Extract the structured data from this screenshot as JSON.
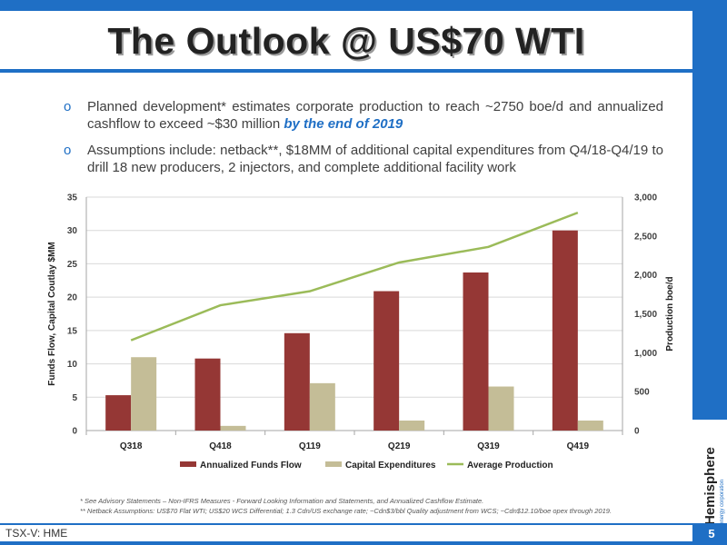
{
  "slide": {
    "title": "The Outlook @ US$70 WTI",
    "bullets": [
      {
        "text": "Planned development* estimates corporate production to reach ~2750 boe/d and annualized cashflow to exceed ~$30 million ",
        "emphasis": "by the end of 2019"
      },
      {
        "text": "Assumptions include: netback**, $18MM of additional capital expenditures from Q4/18-Q4/19 to drill 18 new producers, 2 injectors, and complete additional facility work",
        "emphasis": ""
      }
    ],
    "bullet_symbol": "o",
    "footnotes": [
      "*   See Advisory Statements – Non-IFRS Measures - Forward Looking Information and Statements, and Annualized Cashflow Estimate.",
      "**  Netback Assumptions: US$70 Flat WTI; US$20 WCS Differential; 1.3 Cdn/US exchange rate; ~Cdn$3/bbl Quality adjustment from WCS; ~Cdn$12.10/boe opex through 2019."
    ],
    "ticker": "TSX-V: HME",
    "page_number": "5",
    "logo": {
      "name": "Hemisphere",
      "sub": "energy corporation"
    }
  },
  "colors": {
    "brand_blue": "#1f6fc5",
    "funds_flow": "#953735",
    "capex": "#c4bd97",
    "production": "#9bbb59"
  },
  "chart_data": {
    "type": "bar",
    "categories": [
      "Q318",
      "Q418",
      "Q119",
      "Q219",
      "Q319",
      "Q419"
    ],
    "series": [
      {
        "name": "Annualized Funds Flow",
        "type": "bar",
        "axis": "left",
        "values": [
          5.3,
          10.8,
          14.6,
          20.9,
          23.7,
          30.0
        ]
      },
      {
        "name": "Capital Expenditures",
        "type": "bar",
        "axis": "left",
        "values": [
          11.0,
          0.7,
          7.1,
          1.5,
          6.6,
          1.5
        ]
      },
      {
        "name": "Average Production",
        "type": "line",
        "axis": "right",
        "values": [
          1160,
          1610,
          1790,
          2160,
          2360,
          2800
        ]
      }
    ],
    "ylabel": "Funds Flow, Capital Coutlay $MM",
    "y2label": "Production boe/d",
    "ylim": [
      0,
      35
    ],
    "y2lim": [
      0,
      3000
    ],
    "yticks": [
      "0",
      "5",
      "10",
      "15",
      "20",
      "25",
      "30",
      "35"
    ],
    "y2ticks": [
      "0",
      "500",
      "1,000",
      "1,500",
      "2,000",
      "2,500",
      "3,000"
    ],
    "legend_position": "bottom",
    "grid": "horizontal"
  }
}
